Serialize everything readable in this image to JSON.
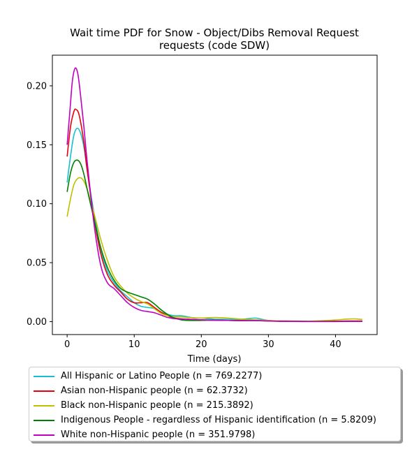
{
  "chart_data": {
    "type": "line",
    "title": "Wait time PDF for Snow - Object/Dibs Removal Request requests (code SDW)",
    "title_lines": [
      "Wait time PDF for Snow - Object/Dibs Removal Request",
      "requests (code SDW)"
    ],
    "xlabel": "Time (days)",
    "ylabel": "",
    "xlim": [
      -2.2,
      46.2
    ],
    "ylim": [
      -0.011,
      0.226
    ],
    "xticks": [
      0,
      10,
      20,
      30,
      40
    ],
    "yticks": [
      0.0,
      0.05,
      0.1,
      0.15,
      0.2
    ],
    "ytick_labels": [
      "0.00",
      "0.05",
      "0.10",
      "0.15",
      "0.20"
    ],
    "grid": false,
    "legend_position": "below",
    "series": [
      {
        "name": "All Hispanic or Latino People (n = 769.2277)",
        "color": "#17becf",
        "points": [
          [
            0,
            0.118
          ],
          [
            0.5,
            0.14
          ],
          [
            1,
            0.158
          ],
          [
            1.5,
            0.164
          ],
          [
            2,
            0.16
          ],
          [
            2.5,
            0.148
          ],
          [
            3,
            0.128
          ],
          [
            4,
            0.092
          ],
          [
            5,
            0.062
          ],
          [
            6,
            0.043
          ],
          [
            7,
            0.033
          ],
          [
            8,
            0.026
          ],
          [
            9,
            0.021
          ],
          [
            10,
            0.016
          ],
          [
            11,
            0.013
          ],
          [
            12,
            0.012
          ],
          [
            13,
            0.011
          ],
          [
            14,
            0.008
          ],
          [
            15,
            0.006
          ],
          [
            16,
            0.005
          ],
          [
            17,
            0.005
          ],
          [
            18,
            0.004
          ],
          [
            19,
            0.003
          ],
          [
            20,
            0.003
          ],
          [
            22,
            0.002
          ],
          [
            24,
            0.002
          ],
          [
            26,
            0.002
          ],
          [
            28,
            0.003
          ],
          [
            29,
            0.002
          ],
          [
            30,
            0.001
          ],
          [
            32,
            0.0003
          ],
          [
            35,
            0.0002
          ],
          [
            38,
            0.0002
          ],
          [
            40,
            0.0002
          ],
          [
            42,
            0.0003
          ],
          [
            44,
            0.0003
          ]
        ]
      },
      {
        "name": "Asian non-Hispanic people (n = 62.3732)",
        "color": "#e8000b",
        "points": [
          [
            0,
            0.14
          ],
          [
            0.5,
            0.165
          ],
          [
            1,
            0.178
          ],
          [
            1.3,
            0.18
          ],
          [
            1.8,
            0.175
          ],
          [
            2.5,
            0.152
          ],
          [
            3,
            0.128
          ],
          [
            4,
            0.088
          ],
          [
            5,
            0.058
          ],
          [
            6,
            0.04
          ],
          [
            7,
            0.031
          ],
          [
            8,
            0.025
          ],
          [
            9,
            0.019
          ],
          [
            10,
            0.016
          ],
          [
            11,
            0.016
          ],
          [
            12,
            0.016
          ],
          [
            13,
            0.012
          ],
          [
            14,
            0.008
          ],
          [
            15,
            0.005
          ],
          [
            16,
            0.003
          ],
          [
            18,
            0.002
          ],
          [
            20,
            0.0015
          ],
          [
            22,
            0.0012
          ],
          [
            24,
            0.001
          ],
          [
            26,
            0.001
          ],
          [
            28,
            0.001
          ],
          [
            30,
            0.0008
          ],
          [
            32,
            0.0005
          ],
          [
            35,
            0.0004
          ],
          [
            38,
            0.0004
          ],
          [
            40,
            0.0004
          ],
          [
            42,
            0.0005
          ],
          [
            44,
            0.0005
          ]
        ]
      },
      {
        "name": "Black non-Hispanic people (n = 215.3892)",
        "color": "#bfbf00",
        "points": [
          [
            0,
            0.089
          ],
          [
            0.5,
            0.104
          ],
          [
            1,
            0.116
          ],
          [
            1.5,
            0.121
          ],
          [
            2,
            0.122
          ],
          [
            2.5,
            0.119
          ],
          [
            3,
            0.112
          ],
          [
            4,
            0.092
          ],
          [
            5,
            0.07
          ],
          [
            6,
            0.052
          ],
          [
            7,
            0.038
          ],
          [
            8,
            0.03
          ],
          [
            9,
            0.024
          ],
          [
            10,
            0.02
          ],
          [
            11,
            0.017
          ],
          [
            12,
            0.015
          ],
          [
            13,
            0.011
          ],
          [
            14,
            0.007
          ],
          [
            15,
            0.005
          ],
          [
            16,
            0.004
          ],
          [
            17,
            0.004
          ],
          [
            18,
            0.0035
          ],
          [
            20,
            0.003
          ],
          [
            22,
            0.0035
          ],
          [
            24,
            0.003
          ],
          [
            26,
            0.002
          ],
          [
            28,
            0.0015
          ],
          [
            30,
            0.001
          ],
          [
            32,
            0.0005
          ],
          [
            35,
            0.0003
          ],
          [
            38,
            0.0008
          ],
          [
            40,
            0.0014
          ],
          [
            42,
            0.0022
          ],
          [
            43,
            0.0023
          ],
          [
            44,
            0.0018
          ]
        ]
      },
      {
        "name": "Indigenous People - regardless of Hispanic identification (n = 5.8209)",
        "color": "#008000",
        "points": [
          [
            0,
            0.11
          ],
          [
            0.5,
            0.126
          ],
          [
            1,
            0.135
          ],
          [
            1.5,
            0.137
          ],
          [
            2,
            0.134
          ],
          [
            2.5,
            0.125
          ],
          [
            3,
            0.112
          ],
          [
            4,
            0.087
          ],
          [
            5,
            0.063
          ],
          [
            6,
            0.046
          ],
          [
            7,
            0.035
          ],
          [
            8,
            0.028
          ],
          [
            9,
            0.025
          ],
          [
            10,
            0.023
          ],
          [
            11,
            0.021
          ],
          [
            12,
            0.019
          ],
          [
            13,
            0.015
          ],
          [
            14,
            0.01
          ],
          [
            15,
            0.006
          ],
          [
            16,
            0.003
          ],
          [
            17,
            0.0015
          ],
          [
            18,
            0.001
          ],
          [
            20,
            0.001
          ],
          [
            22,
            0.0012
          ],
          [
            24,
            0.001
          ],
          [
            26,
            0.0008
          ],
          [
            28,
            0.0008
          ],
          [
            30,
            0.0005
          ],
          [
            32,
            0.0003
          ],
          [
            35,
            0.0002
          ],
          [
            38,
            0.0002
          ],
          [
            40,
            0.0002
          ],
          [
            42,
            0.0002
          ],
          [
            44,
            0.0002
          ]
        ]
      },
      {
        "name": "White non-Hispanic people (n = 351.9798)",
        "color": "#c000c0",
        "points": [
          [
            0,
            0.15
          ],
          [
            0.5,
            0.185
          ],
          [
            0.8,
            0.205
          ],
          [
            1.2,
            0.215
          ],
          [
            1.6,
            0.21
          ],
          [
            2,
            0.192
          ],
          [
            2.5,
            0.165
          ],
          [
            3,
            0.135
          ],
          [
            4,
            0.083
          ],
          [
            5,
            0.048
          ],
          [
            6,
            0.033
          ],
          [
            7,
            0.028
          ],
          [
            8,
            0.022
          ],
          [
            9,
            0.016
          ],
          [
            10,
            0.012
          ],
          [
            11,
            0.0095
          ],
          [
            12,
            0.0085
          ],
          [
            13,
            0.0075
          ],
          [
            14,
            0.0055
          ],
          [
            15,
            0.0035
          ],
          [
            16,
            0.0025
          ],
          [
            18,
            0.002
          ],
          [
            20,
            0.0015
          ],
          [
            22,
            0.0012
          ],
          [
            24,
            0.001
          ],
          [
            26,
            0.0008
          ],
          [
            28,
            0.0009
          ],
          [
            30,
            0.0005
          ],
          [
            32,
            0.0002
          ],
          [
            35,
            0.0001
          ],
          [
            38,
            0.0001
          ],
          [
            40,
            0.0001
          ],
          [
            42,
            0.0002
          ],
          [
            44,
            0.0002
          ]
        ]
      }
    ]
  }
}
